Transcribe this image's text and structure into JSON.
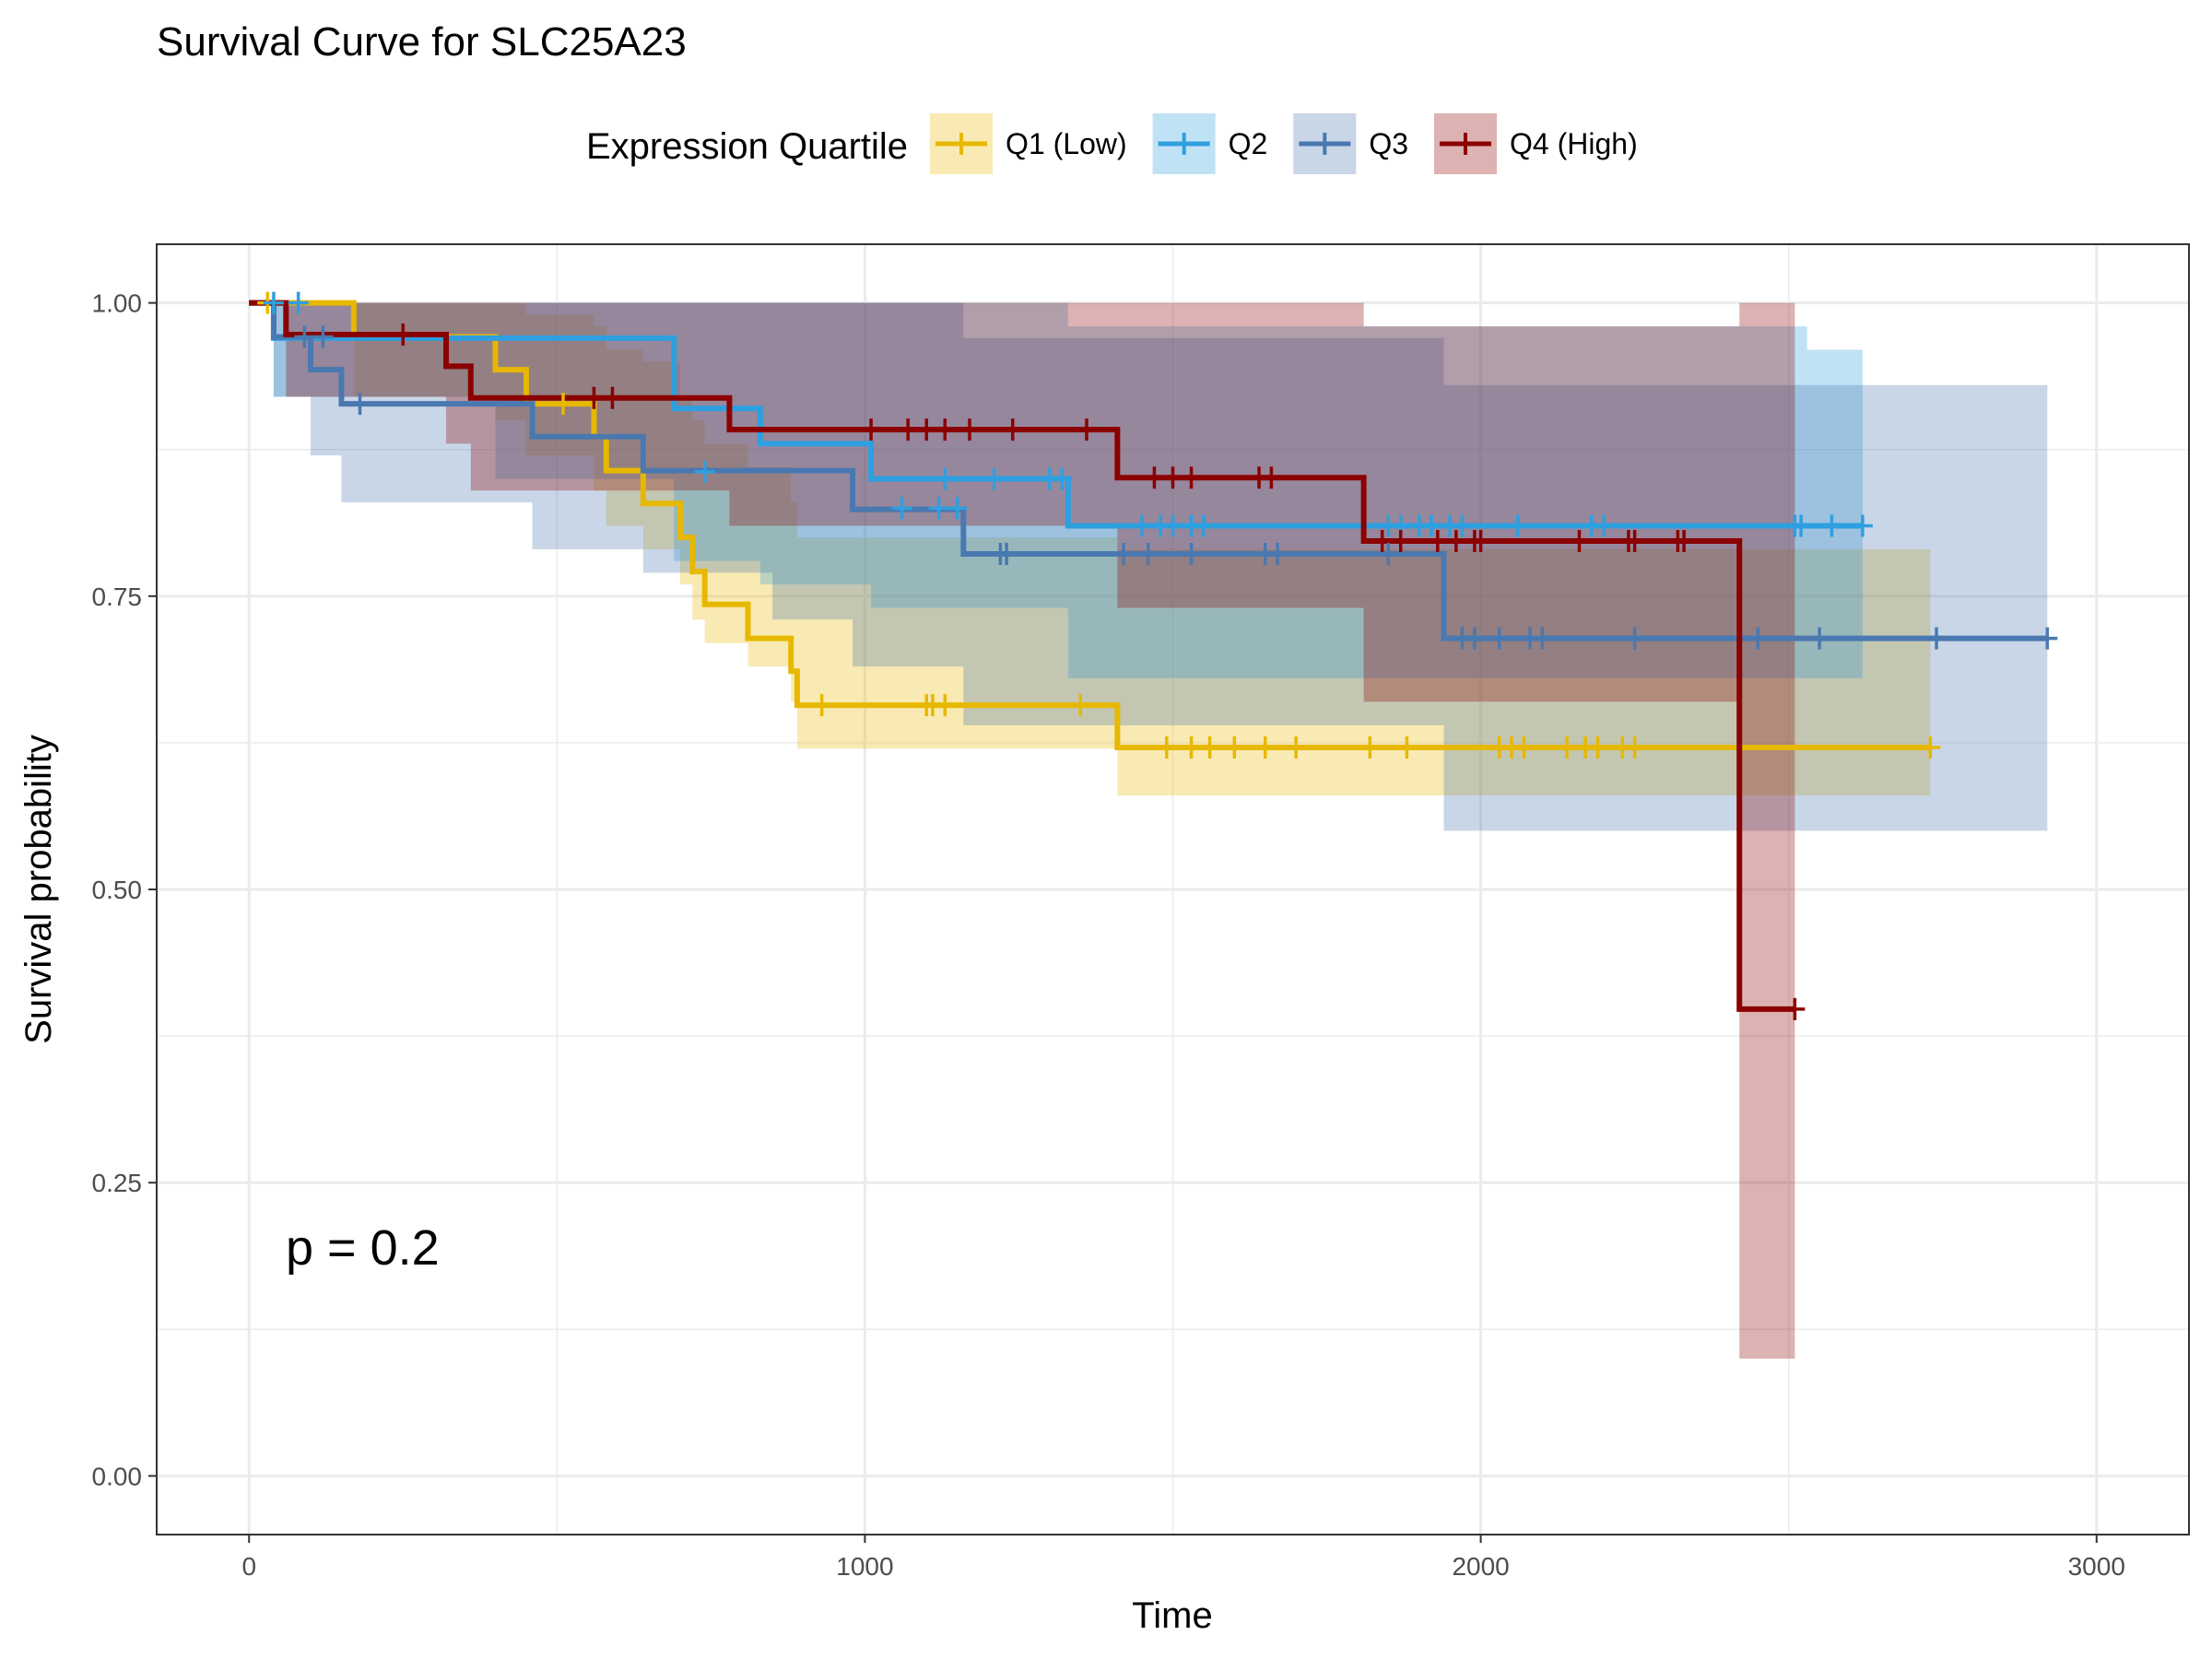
{
  "chart_data": {
    "type": "line",
    "subtype": "kaplan-meier-step",
    "title": "Survival Curve for SLC25A23",
    "xlabel": "Time",
    "ylabel": "Survival probability",
    "xlim": [
      -150,
      3150
    ],
    "ylim": [
      -0.05,
      1.05
    ],
    "x_ticks": [
      0,
      1000,
      2000,
      3000
    ],
    "x_tick_labels": [
      "0",
      "1000",
      "2000",
      "3000"
    ],
    "y_ticks": [
      0,
      0.25,
      0.5,
      0.75,
      1
    ],
    "y_tick_labels": [
      "0.00",
      "0.25",
      "0.50",
      "0.75",
      "1.00"
    ],
    "grid": true,
    "legend": {
      "title": "Expression Quartile",
      "position": "top"
    },
    "annotation": "p = 0.2",
    "series": [
      {
        "name": "Q1 (Low)",
        "color": "#E7B800",
        "steps": [
          [
            0,
            1
          ],
          [
            170,
            0.971
          ],
          [
            400,
            0.943
          ],
          [
            450,
            0.914
          ],
          [
            560,
            0.886
          ],
          [
            580,
            0.857
          ],
          [
            640,
            0.829
          ],
          [
            700,
            0.8
          ],
          [
            720,
            0.771
          ],
          [
            740,
            0.743
          ],
          [
            810,
            0.714
          ],
          [
            880,
            0.686
          ],
          [
            890,
            0.657
          ],
          [
            1410,
            0.621
          ],
          [
            2730,
            0.621
          ]
        ],
        "ci_steps": [
          [
            0,
            1,
            1
          ],
          [
            170,
            1,
            0.92
          ],
          [
            400,
            1,
            0.9
          ],
          [
            450,
            0.99,
            0.87
          ],
          [
            560,
            0.98,
            0.84
          ],
          [
            580,
            0.96,
            0.81
          ],
          [
            640,
            0.95,
            0.79
          ],
          [
            700,
            0.92,
            0.76
          ],
          [
            720,
            0.9,
            0.73
          ],
          [
            740,
            0.88,
            0.71
          ],
          [
            810,
            0.86,
            0.69
          ],
          [
            880,
            0.83,
            0.66
          ],
          [
            890,
            0.8,
            0.62
          ],
          [
            1410,
            0.79,
            0.58
          ],
          [
            2730,
            0.79,
            0.58
          ]
        ],
        "censored": [
          [
            30,
            1
          ],
          [
            510,
            0.914
          ],
          [
            930,
            0.657
          ],
          [
            1100,
            0.657
          ],
          [
            1110,
            0.657
          ],
          [
            1130,
            0.657
          ],
          [
            1350,
            0.657
          ],
          [
            1490,
            0.621
          ],
          [
            1530,
            0.621
          ],
          [
            1560,
            0.621
          ],
          [
            1600,
            0.621
          ],
          [
            1650,
            0.621
          ],
          [
            1700,
            0.621
          ],
          [
            1820,
            0.621
          ],
          [
            1880,
            0.621
          ],
          [
            2030,
            0.621
          ],
          [
            2050,
            0.621
          ],
          [
            2070,
            0.621
          ],
          [
            2140,
            0.621
          ],
          [
            2170,
            0.621
          ],
          [
            2190,
            0.621
          ],
          [
            2230,
            0.621
          ],
          [
            2250,
            0.621
          ],
          [
            2730,
            0.621
          ]
        ]
      },
      {
        "name": "Q2",
        "color": "#2E9FDF",
        "steps": [
          [
            0,
            1
          ],
          [
            40,
            0.97
          ],
          [
            100,
            0.97
          ],
          [
            130,
            0.97
          ],
          [
            400,
            0.97
          ],
          [
            690,
            0.91
          ],
          [
            830,
            0.88
          ],
          [
            1010,
            0.85
          ],
          [
            1210,
            0.85
          ],
          [
            1330,
            0.81
          ],
          [
            2530,
            0.81
          ],
          [
            2620,
            0.81
          ]
        ],
        "ci_steps": [
          [
            0,
            1,
            1
          ],
          [
            40,
            1,
            0.92
          ],
          [
            400,
            1,
            0.85
          ],
          [
            690,
            1,
            0.78
          ],
          [
            830,
            1,
            0.76
          ],
          [
            1010,
            1,
            0.74
          ],
          [
            1330,
            0.98,
            0.68
          ],
          [
            2530,
            0.96,
            0.68
          ],
          [
            2620,
            0.96,
            0.68
          ]
        ],
        "censored": [
          [
            40,
            1
          ],
          [
            80,
            1
          ],
          [
            740,
            0.856
          ],
          [
            1060,
            0.825
          ],
          [
            1120,
            0.825
          ],
          [
            1130,
            0.85
          ],
          [
            1150,
            0.825
          ],
          [
            1210,
            0.85
          ],
          [
            1300,
            0.85
          ],
          [
            1320,
            0.85
          ],
          [
            1450,
            0.81
          ],
          [
            1480,
            0.81
          ],
          [
            1500,
            0.81
          ],
          [
            1530,
            0.81
          ],
          [
            1550,
            0.81
          ],
          [
            1850,
            0.81
          ],
          [
            1870,
            0.81
          ],
          [
            1900,
            0.81
          ],
          [
            1920,
            0.81
          ],
          [
            1950,
            0.81
          ],
          [
            1970,
            0.81
          ],
          [
            2060,
            0.81
          ],
          [
            2180,
            0.81
          ],
          [
            2200,
            0.81
          ],
          [
            2510,
            0.81
          ],
          [
            2520,
            0.81
          ],
          [
            2570,
            0.81
          ],
          [
            2620,
            0.81
          ]
        ]
      },
      {
        "name": "Q3",
        "color": "#4A78B0",
        "steps": [
          [
            0,
            1
          ],
          [
            40,
            0.971
          ],
          [
            100,
            0.943
          ],
          [
            150,
            0.914
          ],
          [
            460,
            0.886
          ],
          [
            560,
            0.886
          ],
          [
            640,
            0.857
          ],
          [
            850,
            0.857
          ],
          [
            980,
            0.824
          ],
          [
            1160,
            0.786
          ],
          [
            1820,
            0.786
          ],
          [
            1940,
            0.714
          ],
          [
            2920,
            0.714
          ]
        ],
        "ci_steps": [
          [
            0,
            1,
            1
          ],
          [
            40,
            1,
            0.92
          ],
          [
            100,
            1,
            0.87
          ],
          [
            150,
            1,
            0.83
          ],
          [
            460,
            1,
            0.79
          ],
          [
            640,
            1,
            0.77
          ],
          [
            850,
            1,
            0.73
          ],
          [
            980,
            1,
            0.69
          ],
          [
            1160,
            0.97,
            0.64
          ],
          [
            1940,
            0.93,
            0.55
          ],
          [
            2920,
            0.93,
            0.55
          ]
        ],
        "censored": [
          [
            90,
            0.971
          ],
          [
            120,
            0.971
          ],
          [
            180,
            0.914
          ],
          [
            1220,
            0.786
          ],
          [
            1230,
            0.786
          ],
          [
            1420,
            0.786
          ],
          [
            1460,
            0.786
          ],
          [
            1530,
            0.786
          ],
          [
            1650,
            0.786
          ],
          [
            1670,
            0.786
          ],
          [
            1850,
            0.786
          ],
          [
            1970,
            0.714
          ],
          [
            1990,
            0.714
          ],
          [
            2030,
            0.714
          ],
          [
            2080,
            0.714
          ],
          [
            2100,
            0.714
          ],
          [
            2250,
            0.714
          ],
          [
            2450,
            0.714
          ],
          [
            2550,
            0.714
          ],
          [
            2740,
            0.714
          ],
          [
            2920,
            0.714
          ]
        ]
      },
      {
        "name": "Q4 (High)",
        "color": "#8B0000",
        "steps": [
          [
            0,
            1
          ],
          [
            60,
            0.973
          ],
          [
            250,
            0.973
          ],
          [
            320,
            0.946
          ],
          [
            360,
            0.919
          ],
          [
            780,
            0.892
          ],
          [
            1410,
            0.851
          ],
          [
            1810,
            0.797
          ],
          [
            2420,
            0.398
          ],
          [
            2510,
            0.398
          ]
        ],
        "ci_steps": [
          [
            0,
            1,
            1
          ],
          [
            60,
            1,
            0.92
          ],
          [
            320,
            1,
            0.88
          ],
          [
            360,
            1,
            0.84
          ],
          [
            780,
            1,
            0.81
          ],
          [
            1410,
            1,
            0.74
          ],
          [
            1810,
            0.98,
            0.66
          ],
          [
            2420,
            1,
            0.1
          ],
          [
            2510,
            1,
            0.1
          ]
        ],
        "censored": [
          [
            250,
            0.973
          ],
          [
            560,
            0.919
          ],
          [
            590,
            0.919
          ],
          [
            1010,
            0.892
          ],
          [
            1070,
            0.892
          ],
          [
            1100,
            0.892
          ],
          [
            1130,
            0.892
          ],
          [
            1170,
            0.892
          ],
          [
            1240,
            0.892
          ],
          [
            1360,
            0.892
          ],
          [
            1470,
            0.851
          ],
          [
            1500,
            0.851
          ],
          [
            1530,
            0.851
          ],
          [
            1640,
            0.851
          ],
          [
            1660,
            0.851
          ],
          [
            1840,
            0.797
          ],
          [
            1870,
            0.797
          ],
          [
            1930,
            0.797
          ],
          [
            1960,
            0.797
          ],
          [
            1990,
            0.797
          ],
          [
            2000,
            0.797
          ],
          [
            2160,
            0.797
          ],
          [
            2240,
            0.797
          ],
          [
            2250,
            0.797
          ],
          [
            2320,
            0.797
          ],
          [
            2330,
            0.797
          ],
          [
            2510,
            0.398
          ]
        ]
      }
    ]
  }
}
